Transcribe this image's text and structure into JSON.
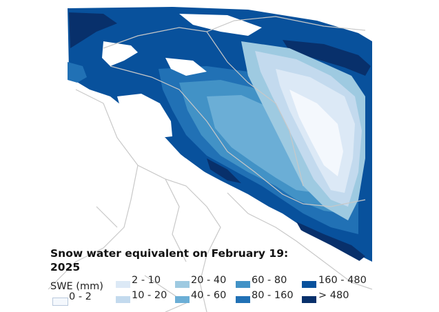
{
  "title": "Snow water equivalent on February 19: 2025",
  "legend": {
    "title": "SWE (mm)",
    "classes": [
      {
        "label": "0 - 2",
        "color": "#f4f8fd"
      },
      {
        "label": "2 - 10",
        "color": "#dce9f6"
      },
      {
        "label": "10 - 20",
        "color": "#c3daee"
      },
      {
        "label": "20 - 40",
        "color": "#9ecae1"
      },
      {
        "label": "40 - 60",
        "color": "#6baed6"
      },
      {
        "label": "60 - 80",
        "color": "#4292c6"
      },
      {
        "label": "80 - 160",
        "color": "#2171b5"
      },
      {
        "label": "160 - 480",
        "color": "#08519c"
      },
      {
        "label": "> 480",
        "color": "#08306b"
      }
    ]
  },
  "colors": {
    "boundary": "#c8c8c8",
    "background": "#ffffff"
  }
}
